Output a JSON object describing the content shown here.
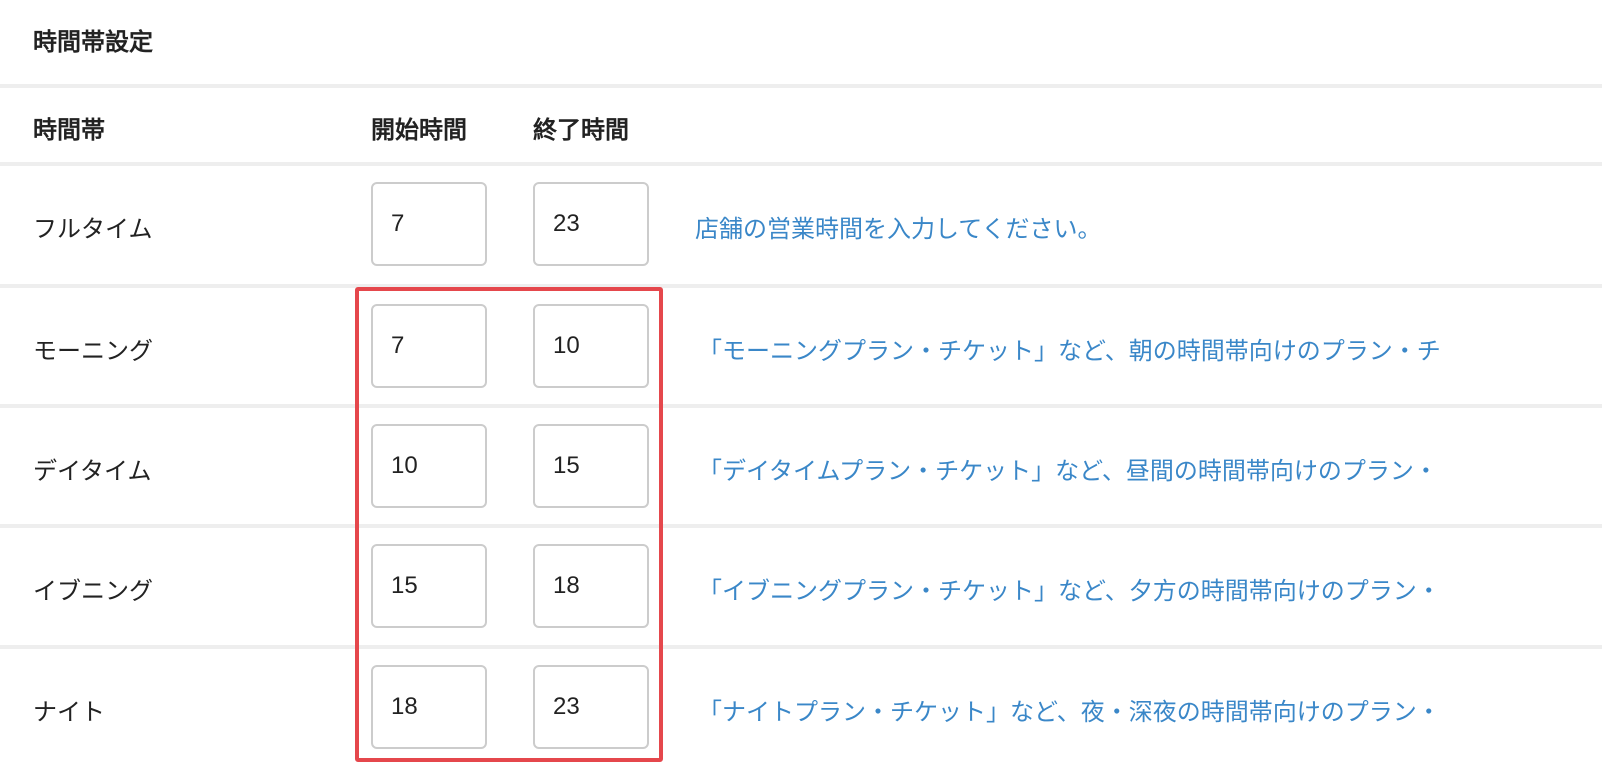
{
  "title": "時間帯設定",
  "headers": {
    "period": "時間帯",
    "start": "開始時間",
    "end": "終了時間"
  },
  "rows": [
    {
      "label": "フルタイム",
      "start": "7",
      "end": "23",
      "desc": "店舗の営業時間を入力してください。"
    },
    {
      "label": "モーニング",
      "start": "7",
      "end": "10",
      "desc": "「モーニングプラン・チケット」など、朝の時間帯向けのプラン・チ"
    },
    {
      "label": "デイタイム",
      "start": "10",
      "end": "15",
      "desc": "「デイタイムプラン・チケット」など、昼間の時間帯向けのプラン・"
    },
    {
      "label": "イブニング",
      "start": "15",
      "end": "18",
      "desc": "「イブニングプラン・チケット」など、夕方の時間帯向けのプラン・"
    },
    {
      "label": "ナイト",
      "start": "18",
      "end": "23",
      "desc": "「ナイトプラン・チケット」など、夜・深夜の時間帯向けのプラン・"
    }
  ],
  "colors": {
    "highlight": "#e5474c",
    "description": "#3a87c8",
    "divider": "#eeeeee"
  }
}
